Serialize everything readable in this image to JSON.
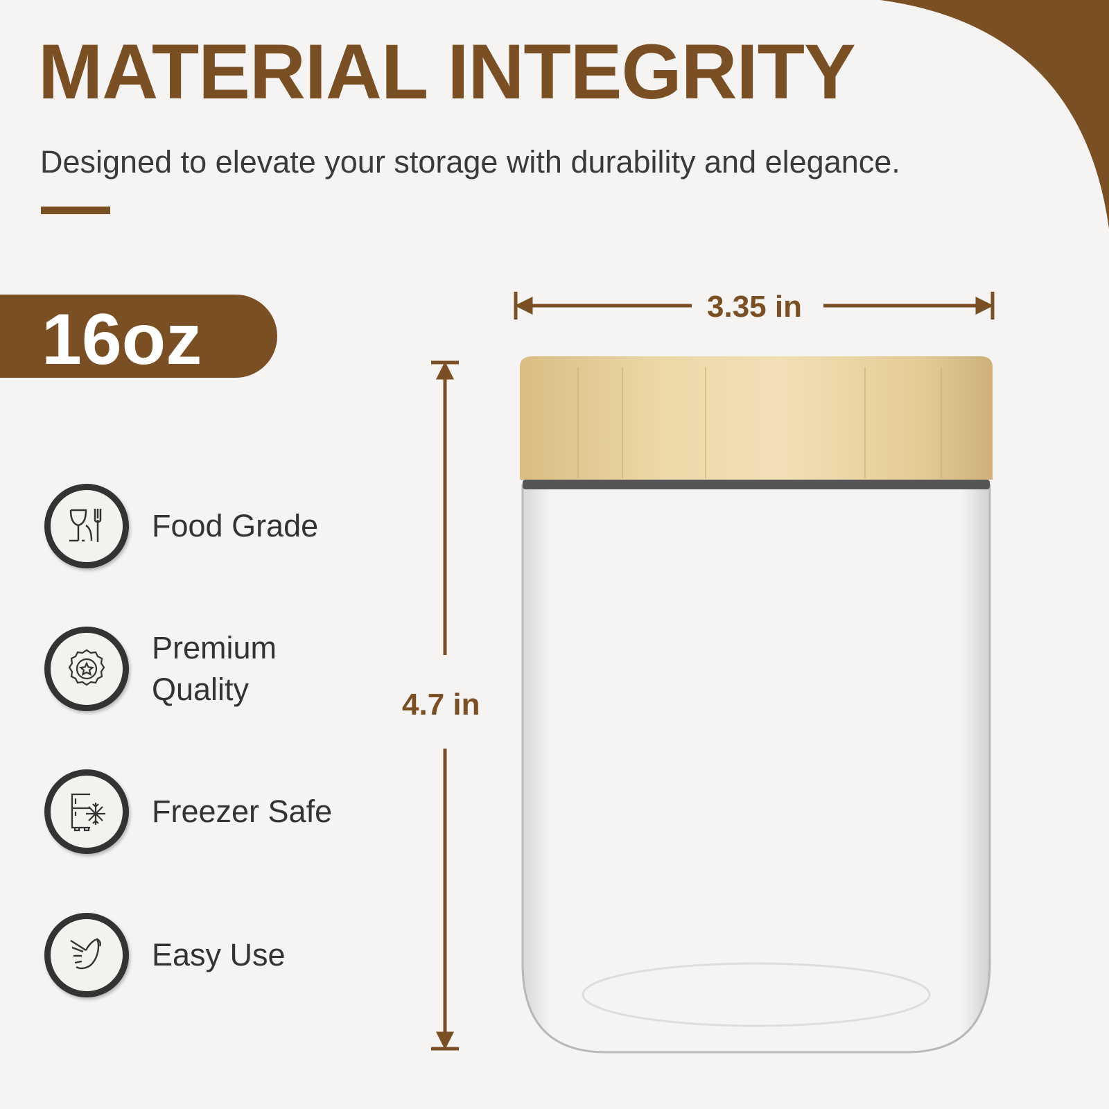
{
  "header": {
    "title": "MATERIAL INTEGRITY",
    "subtitle": "Designed to elevate your storage with durability and elegance."
  },
  "capacity_badge": "16oz",
  "features": [
    {
      "label": "Food Grade",
      "icon": "wine-glass-fork-icon"
    },
    {
      "label": "Premium Quality",
      "icon": "star-seal-icon"
    },
    {
      "label": "Freezer Safe",
      "icon": "fridge-snowflake-icon"
    },
    {
      "label": "Easy Use",
      "icon": "hand-gesture-icon"
    }
  ],
  "dimensions": {
    "width": "3.35 in",
    "height": "4.7 in"
  },
  "colors": {
    "brand": "#7a4f24",
    "background": "#f5f4f2",
    "text": "#333333",
    "lid": "#e3cc97"
  }
}
